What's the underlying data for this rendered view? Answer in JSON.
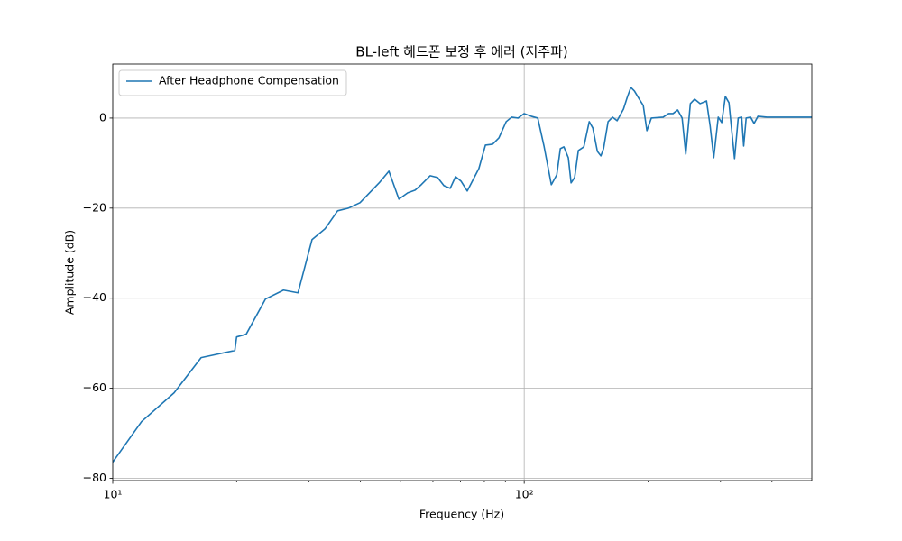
{
  "chart_data": {
    "type": "line",
    "title": "BL-left 헤드폰 보정 후 에러 (저주파)",
    "xlabel": "Frequency (Hz)",
    "ylabel": "Amplitude (dB)",
    "xscale": "log",
    "grid": true,
    "legend": "upper left",
    "xlim": [
      10,
      500
    ],
    "ylim": [
      -80.5,
      12
    ],
    "xticks": [
      {
        "value": 10,
        "label": "10¹"
      },
      {
        "value": 100,
        "label": "10²"
      }
    ],
    "yticks": [
      {
        "value": -80,
        "label": "−80"
      },
      {
        "value": -60,
        "label": "−60"
      },
      {
        "value": -40,
        "label": "−40"
      },
      {
        "value": -20,
        "label": "−20"
      },
      0
    ],
    "x": [
      10,
      11.75,
      14.1,
      16.4,
      19.8,
      20,
      21.1,
      23.5,
      26,
      28.2,
      30.5,
      32.8,
      35.2,
      37.4,
      39.9,
      44.4,
      46.9,
      49.6,
      52.1,
      54.3,
      56.2,
      59.1,
      61.6,
      63.8,
      66.1,
      68.1,
      70.2,
      72.7,
      77.6,
      80.5,
      83.8,
      86.8,
      90.4,
      93.2,
      96.6,
      100,
      104,
      107.9,
      111.7,
      116.4,
      120,
      122.4,
      124.9,
      128,
      130,
      132.6,
      135.4,
      139.6,
      143.9,
      146.8,
      150.6,
      153.6,
      155.9,
      159.9,
      164,
      168.2,
      174.3,
      178,
      181.6,
      185.3,
      191,
      194.7,
      198.7,
      203.7,
      217.6,
      224.4,
      230,
      236,
      242,
      247,
      253.4,
      259.6,
      267.7,
      277.4,
      283.1,
      288.8,
      296.2,
      302,
      308.2,
      314.5,
      324.5,
      331.2,
      337.7,
      341.5,
      346.3,
      355,
      362,
      370,
      389,
      430,
      500
    ],
    "series": [
      {
        "name": "After Headphone Compensation",
        "color": "#1f77b4",
        "values": [
          -76.4,
          -67.4,
          -61,
          -53.2,
          -51.6,
          -48.6,
          -48,
          -40.2,
          -38.2,
          -38.8,
          -27,
          -24.6,
          -20.6,
          -20,
          -18.8,
          -14.4,
          -11.8,
          -18,
          -16.6,
          -16,
          -14.8,
          -12.8,
          -13.2,
          -15,
          -15.6,
          -13,
          -14,
          -16.2,
          -11.2,
          -6,
          -5.8,
          -4.4,
          -0.8,
          0.2,
          0,
          1,
          0.4,
          0,
          -6.2,
          -14.8,
          -12.6,
          -6.8,
          -6.4,
          -8.8,
          -14.4,
          -13.2,
          -7.2,
          -6.4,
          -0.8,
          -2.2,
          -7.4,
          -8.4,
          -6.8,
          -0.8,
          0.2,
          -0.6,
          2,
          4.6,
          6.8,
          6,
          4,
          2.8,
          -2.8,
          0,
          0.2,
          1,
          1,
          1.8,
          0,
          -8,
          3.2,
          4.2,
          3.2,
          3.8,
          -1.8,
          -8.8,
          0.2,
          -1,
          4.8,
          3.4,
          -9,
          0,
          0.2,
          -6.2,
          0,
          0.2,
          -1.2,
          0.4,
          0.2,
          0.2,
          0.2
        ]
      }
    ]
  }
}
